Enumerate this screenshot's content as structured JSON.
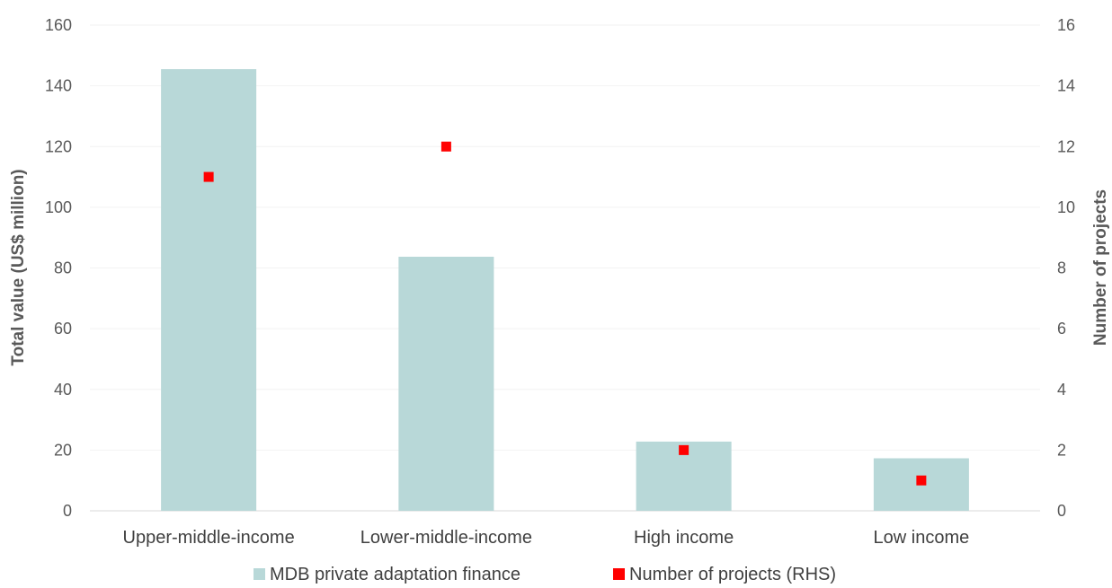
{
  "chart_data": {
    "type": "bar",
    "categories": [
      "Upper-middle-income",
      "Lower-middle-income",
      "High income",
      "Low income"
    ],
    "series": [
      {
        "name": "MDB private adaptation finance",
        "type": "bar",
        "axis": "left",
        "color": "#b8d8d8",
        "values": [
          145.5,
          83.7,
          22.8,
          17.3
        ]
      },
      {
        "name": "Number of projects (RHS)",
        "type": "scatter",
        "axis": "right",
        "color": "#ff0000",
        "values": [
          11,
          12,
          2,
          1
        ]
      }
    ],
    "ylabel": "Total value (US$ million)",
    "ylabel_right": "Number of projects",
    "ylim": [
      0,
      160
    ],
    "ylim_right": [
      0,
      16
    ],
    "yticks": [
      "0",
      "20",
      "40",
      "60",
      "80",
      "100",
      "120",
      "140",
      "160"
    ],
    "yticks_right": [
      "0",
      "2",
      "4",
      "6",
      "8",
      "10",
      "12",
      "14",
      "16"
    ],
    "grid": true,
    "legend_position": "bottom"
  }
}
